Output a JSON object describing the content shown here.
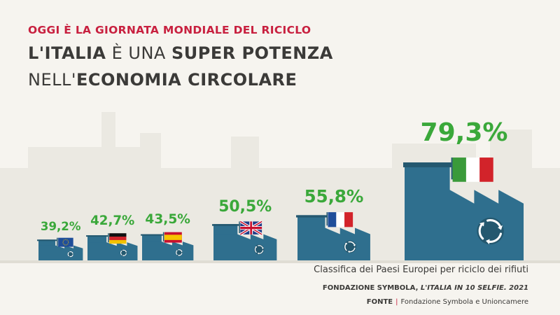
{
  "header": {
    "kicker": "OGGI È LA GIORNATA MONDIALE DEL RICICLO",
    "line1": {
      "a": "L'ITALIA",
      "b": " È UNA ",
      "c": "SUPER POTENZA"
    },
    "line2": {
      "a": "NELL'",
      "b": "ECONOMIA CIRCOLARE"
    }
  },
  "chart_data": {
    "type": "bar",
    "title": "Classifica dei Paesi Europei per riciclo dei rifiuti",
    "categories": [
      "UE",
      "Germania",
      "Spagna",
      "Regno Unito",
      "Francia",
      "Italia"
    ],
    "values": [
      39.2,
      42.7,
      43.5,
      50.5,
      55.8,
      79.3
    ],
    "value_labels": [
      "39,2%",
      "42,7%",
      "43,5%",
      "50,5%",
      "55,8%",
      "79,3%"
    ],
    "flag_icons": [
      "eu-flag-icon",
      "germany-flag-icon",
      "spain-flag-icon",
      "uk-flag-icon",
      "france-flag-icon",
      "italy-flag-icon"
    ],
    "colors": {
      "factory": "#2f6f8e",
      "factory_dark": "#24586f",
      "value": "#3aa83a",
      "background_factory": "#e9e8e2"
    }
  },
  "footer": {
    "caption": "Classifica dei Paesi Europei per riciclo dei rifiuti",
    "source_org": "FONDAZIONE SYMBOLA, ",
    "source_pub": "L'ITALIA IN 10 SELFIE. 2021",
    "fonte_label": "FONTE",
    "fonte_sep": "|",
    "fonte_text": "Fondazione Symbola e Unioncamere"
  }
}
